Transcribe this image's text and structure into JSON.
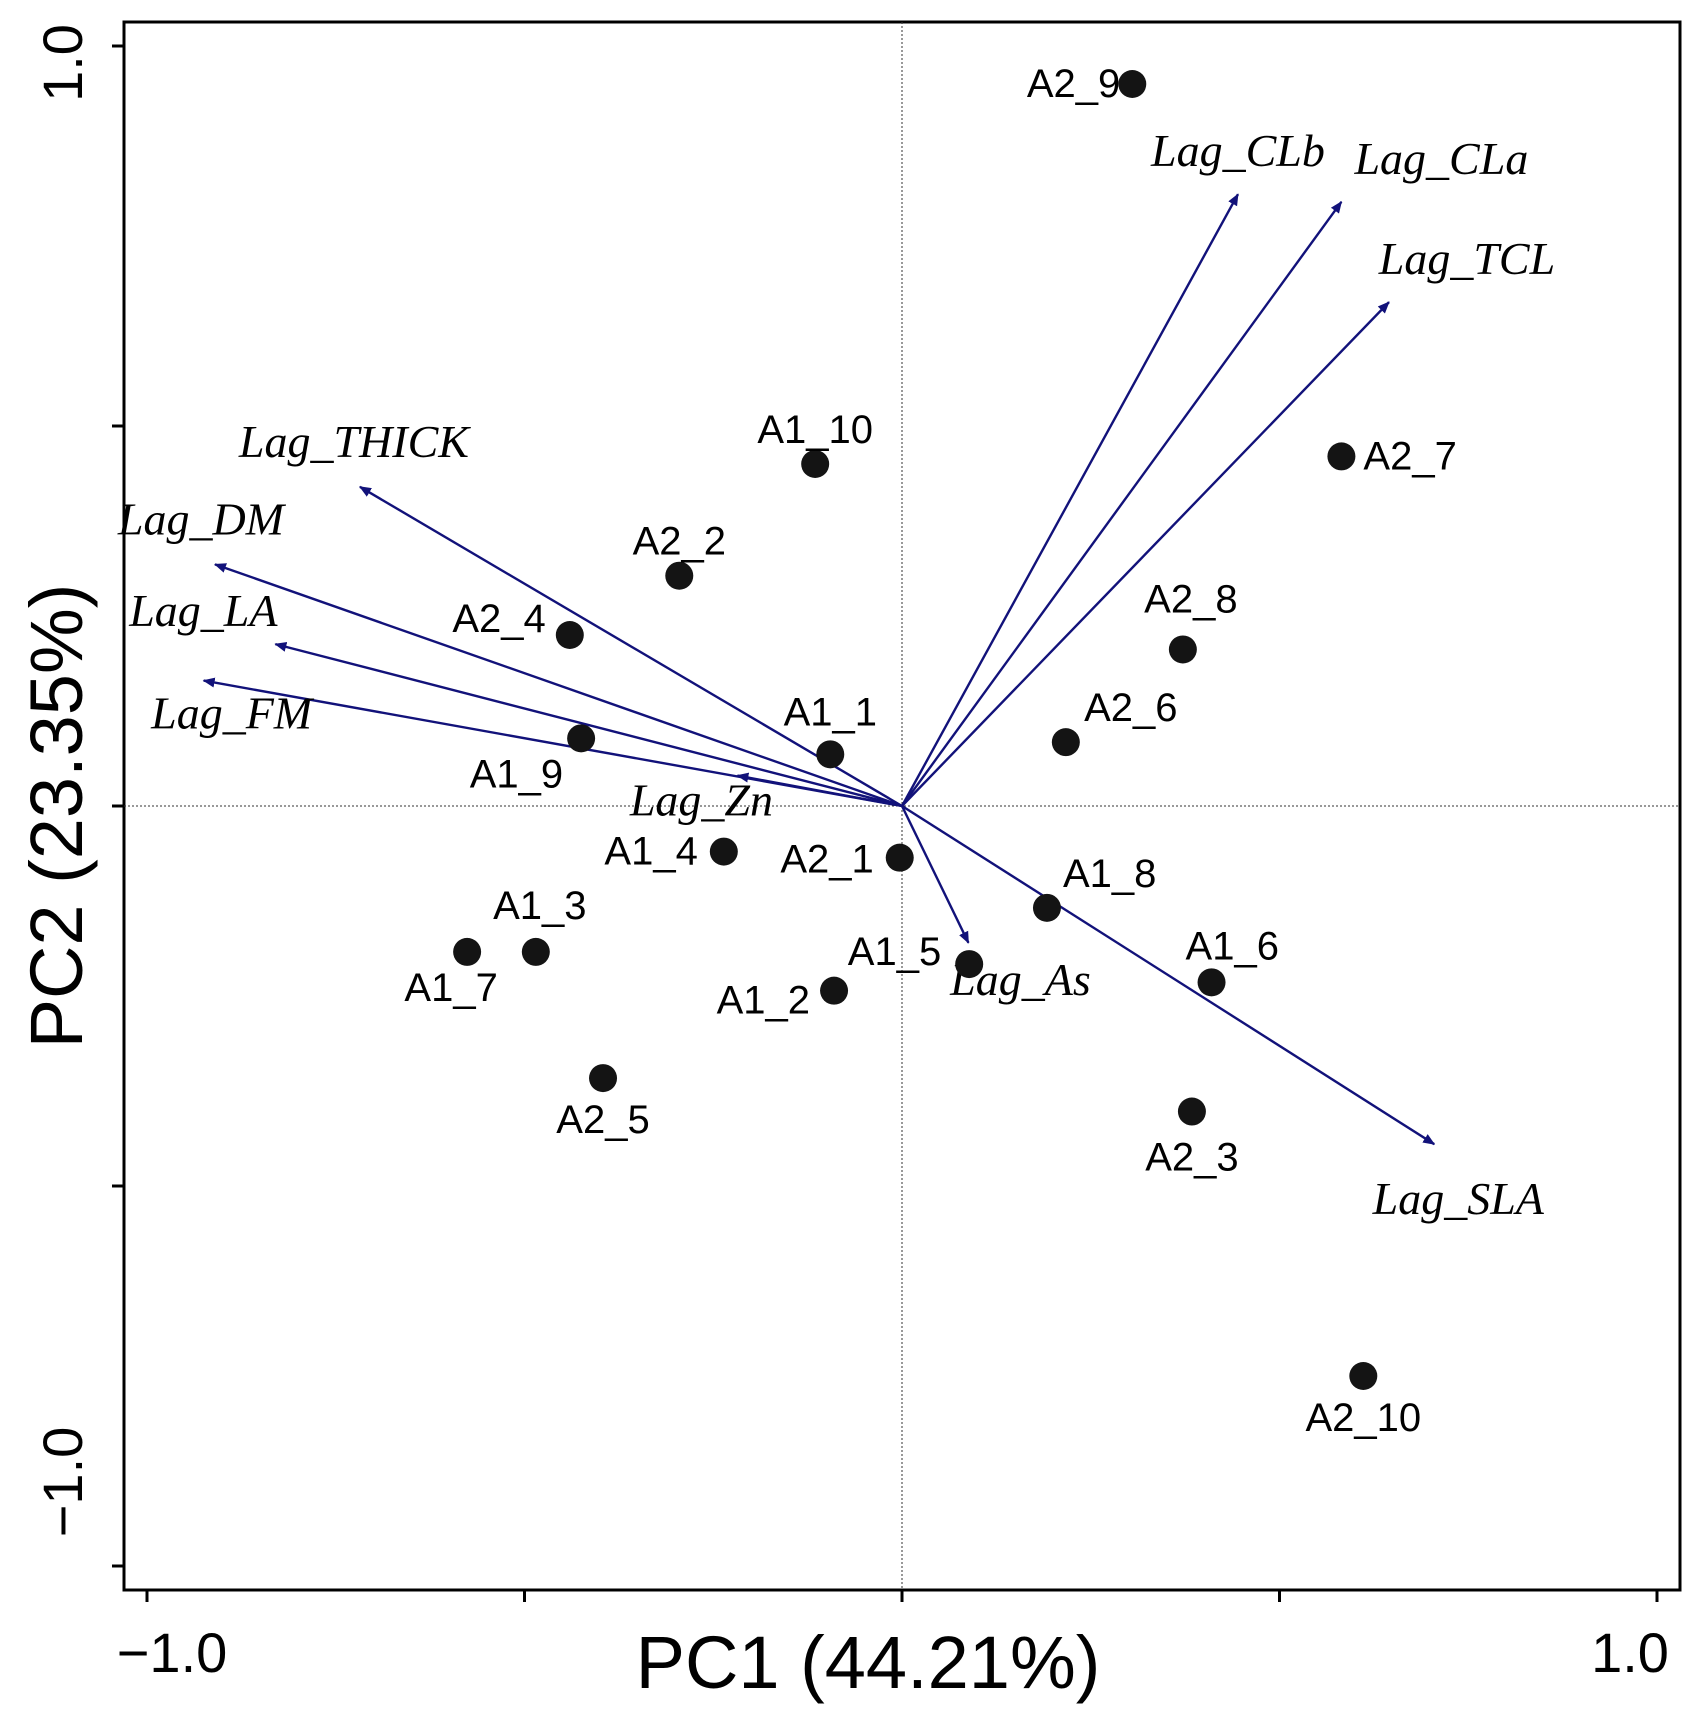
{
  "colors": {
    "arrow": "#12127a",
    "point": "#141414",
    "axis": "#000000",
    "zero_line": "#333333"
  },
  "chart_data": {
    "type": "scatter",
    "subtype": "pca-biplot",
    "xlabel": "PC1 (44.21%)",
    "ylabel": "PC2 (23.35%)",
    "xlim": [
      -1.0,
      1.0
    ],
    "ylim": [
      -1.0,
      1.0
    ],
    "x_tick_values": [
      -1.0,
      -0.5,
      0.0,
      0.5,
      1.0
    ],
    "y_tick_values": [
      -1.0,
      -0.5,
      0.0,
      0.5,
      1.0
    ],
    "x_tick_labels": [
      "−1.0",
      "1.0"
    ],
    "y_tick_labels": [
      "−1.0",
      "1.0"
    ],
    "zero_lines": true,
    "points": [
      {
        "label": "A2_9",
        "x": 0.305,
        "y": 0.95
      },
      {
        "label": "A1_10",
        "x": -0.115,
        "y": 0.45
      },
      {
        "label": "A2_7",
        "x": 0.582,
        "y": 0.46
      },
      {
        "label": "A2_2",
        "x": -0.295,
        "y": 0.303
      },
      {
        "label": "A2_8",
        "x": 0.372,
        "y": 0.206
      },
      {
        "label": "A2_4",
        "x": -0.44,
        "y": 0.225
      },
      {
        "label": "A2_6",
        "x": 0.217,
        "y": 0.084
      },
      {
        "label": "A1_1",
        "x": -0.095,
        "y": 0.068
      },
      {
        "label": "A1_9",
        "x": -0.425,
        "y": 0.089
      },
      {
        "label": "A1_4",
        "x": -0.236,
        "y": -0.06
      },
      {
        "label": "A2_1",
        "x": -0.003,
        "y": -0.068
      },
      {
        "label": "A1_8",
        "x": 0.192,
        "y": -0.134
      },
      {
        "label": "A1_3",
        "x": -0.485,
        "y": -0.192
      },
      {
        "label": "A1_7",
        "x": -0.576,
        "y": -0.192
      },
      {
        "label": "A1_5",
        "x": 0.089,
        "y": -0.208
      },
      {
        "label": "A1_6",
        "x": 0.41,
        "y": -0.232
      },
      {
        "label": "A1_2",
        "x": -0.09,
        "y": -0.243
      },
      {
        "label": "A2_5",
        "x": -0.396,
        "y": -0.358
      },
      {
        "label": "A2_3",
        "x": 0.384,
        "y": -0.402
      },
      {
        "label": "A2_10",
        "x": 0.611,
        "y": -0.75
      }
    ],
    "vectors": [
      {
        "label": "Lag_CLb",
        "x": 0.445,
        "y": 0.805
      },
      {
        "label": "Lag_CLa",
        "x": 0.582,
        "y": 0.795
      },
      {
        "label": "Lag_TCL",
        "x": 0.645,
        "y": 0.663
      },
      {
        "label": "Lag_THICK",
        "x": -0.718,
        "y": 0.42
      },
      {
        "label": "Lag_DM",
        "x": -0.91,
        "y": 0.318
      },
      {
        "label": "Lag_LA",
        "x": -0.83,
        "y": 0.213
      },
      {
        "label": "Lag_FM",
        "x": -0.925,
        "y": 0.165
      },
      {
        "label": "Lag_Zn",
        "x": -0.218,
        "y": 0.04
      },
      {
        "label": "Lag_As",
        "x": 0.088,
        "y": -0.18
      },
      {
        "label": "Lag_SLA",
        "x": 0.705,
        "y": -0.445
      }
    ]
  }
}
